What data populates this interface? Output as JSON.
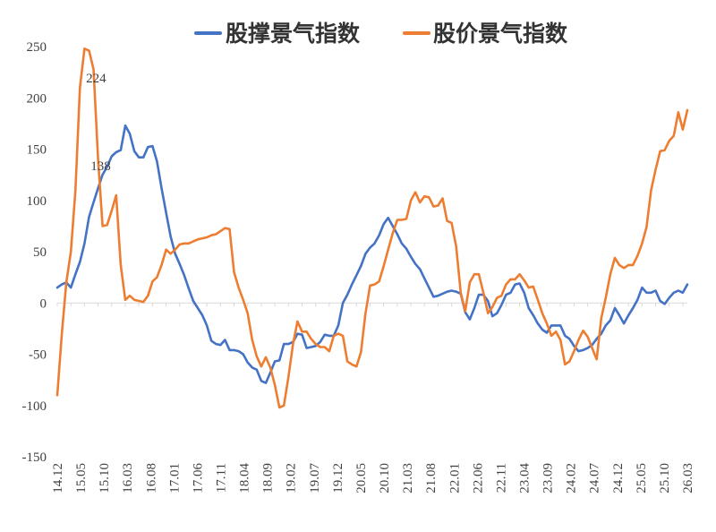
{
  "chart_data": {
    "type": "line",
    "title": "",
    "xlabel": "",
    "ylabel": "",
    "ylim": [
      -150,
      250
    ],
    "yticks": [
      250,
      200,
      150,
      100,
      50,
      0,
      -50,
      -100,
      -150
    ],
    "xticks": [
      "14.12",
      "15.05",
      "15.10",
      "16.03",
      "16.08",
      "17.01",
      "17.06",
      "17.11",
      "18.04",
      "18.09",
      "19.02",
      "19.07",
      "19.12",
      "20.05",
      "20.10",
      "21.03",
      "21.08",
      "22.01",
      "22.06",
      "22.11",
      "23.04",
      "23.09",
      "24.02",
      "24.07",
      "24.12",
      "25.05",
      "25.10",
      "26.03"
    ],
    "grid": false,
    "legend_position": "top",
    "annotations": [
      {
        "text": "224",
        "series": "股价景气指数",
        "x_index": 6,
        "value": 224
      },
      {
        "text": "138",
        "series": "股撑景气指数",
        "x_index": 7,
        "value": 138
      }
    ],
    "series": [
      {
        "name": "股撑景气指数",
        "color": "#4472C4",
        "values": [
          15,
          18,
          20,
          15,
          28,
          40,
          58,
          84,
          98,
          112,
          125,
          133,
          143,
          147,
          149,
          173,
          165,
          148,
          142,
          142,
          152,
          153,
          138,
          112,
          88,
          65,
          48,
          38,
          27,
          14,
          2,
          -5,
          -12,
          -22,
          -37,
          -40,
          -41,
          -36,
          -46,
          -46,
          -47,
          -50,
          -58,
          -63,
          -65,
          -76,
          -78,
          -68,
          -57,
          -56,
          -40,
          -40,
          -38,
          -30,
          -31,
          -44,
          -43,
          -42,
          -38,
          -31,
          -32,
          -32,
          -22,
          0,
          8,
          18,
          27,
          36,
          48,
          54,
          58,
          66,
          77,
          83,
          75,
          67,
          58,
          53,
          45,
          38,
          33,
          24,
          15,
          6,
          7,
          9,
          11,
          12,
          11,
          9,
          -9,
          -16,
          -5,
          8,
          8,
          2,
          -13,
          -10,
          -2,
          8,
          10,
          18,
          19,
          10,
          -5,
          -12,
          -20,
          -26,
          -29,
          -22,
          -22,
          -22,
          -32,
          -35,
          -42,
          -47,
          -46,
          -44,
          -41,
          -35,
          -30,
          -22,
          -17,
          -5,
          -12,
          -20,
          -12,
          -5,
          3,
          15,
          10,
          10,
          12,
          2,
          -1,
          5,
          10,
          12,
          10,
          18
        ]
      },
      {
        "name": "股价景气指数",
        "color": "#ED7D31",
        "values": [
          -90,
          -30,
          20,
          50,
          110,
          210,
          248,
          246,
          228,
          140,
          75,
          76,
          90,
          105,
          37,
          3,
          7,
          3,
          2,
          1,
          7,
          21,
          25,
          37,
          52,
          48,
          52,
          57,
          58,
          58,
          60,
          62,
          63,
          64,
          66,
          67,
          70,
          73,
          72,
          30,
          15,
          3,
          -10,
          -36,
          -52,
          -62,
          -53,
          -63,
          -80,
          -102,
          -100,
          -72,
          -40,
          -18,
          -28,
          -28,
          -35,
          -40,
          -43,
          -43,
          -47,
          -32,
          -30,
          -32,
          -57,
          -60,
          -62,
          -48,
          -10,
          17,
          18,
          21,
          36,
          52,
          68,
          81,
          81,
          82,
          100,
          108,
          98,
          104,
          103,
          94,
          95,
          102,
          80,
          78,
          55,
          10,
          -8,
          20,
          28,
          28,
          10,
          -10,
          -4,
          5,
          7,
          18,
          23,
          23,
          28,
          22,
          15,
          16,
          3,
          -10,
          -20,
          -32,
          -28,
          -36,
          -60,
          -57,
          -47,
          -36,
          -27,
          -33,
          -44,
          -55,
          -15,
          5,
          28,
          44,
          37,
          34,
          37,
          37,
          46,
          58,
          74,
          110,
          130,
          148,
          149,
          158,
          163,
          186,
          169,
          188
        ]
      }
    ]
  }
}
